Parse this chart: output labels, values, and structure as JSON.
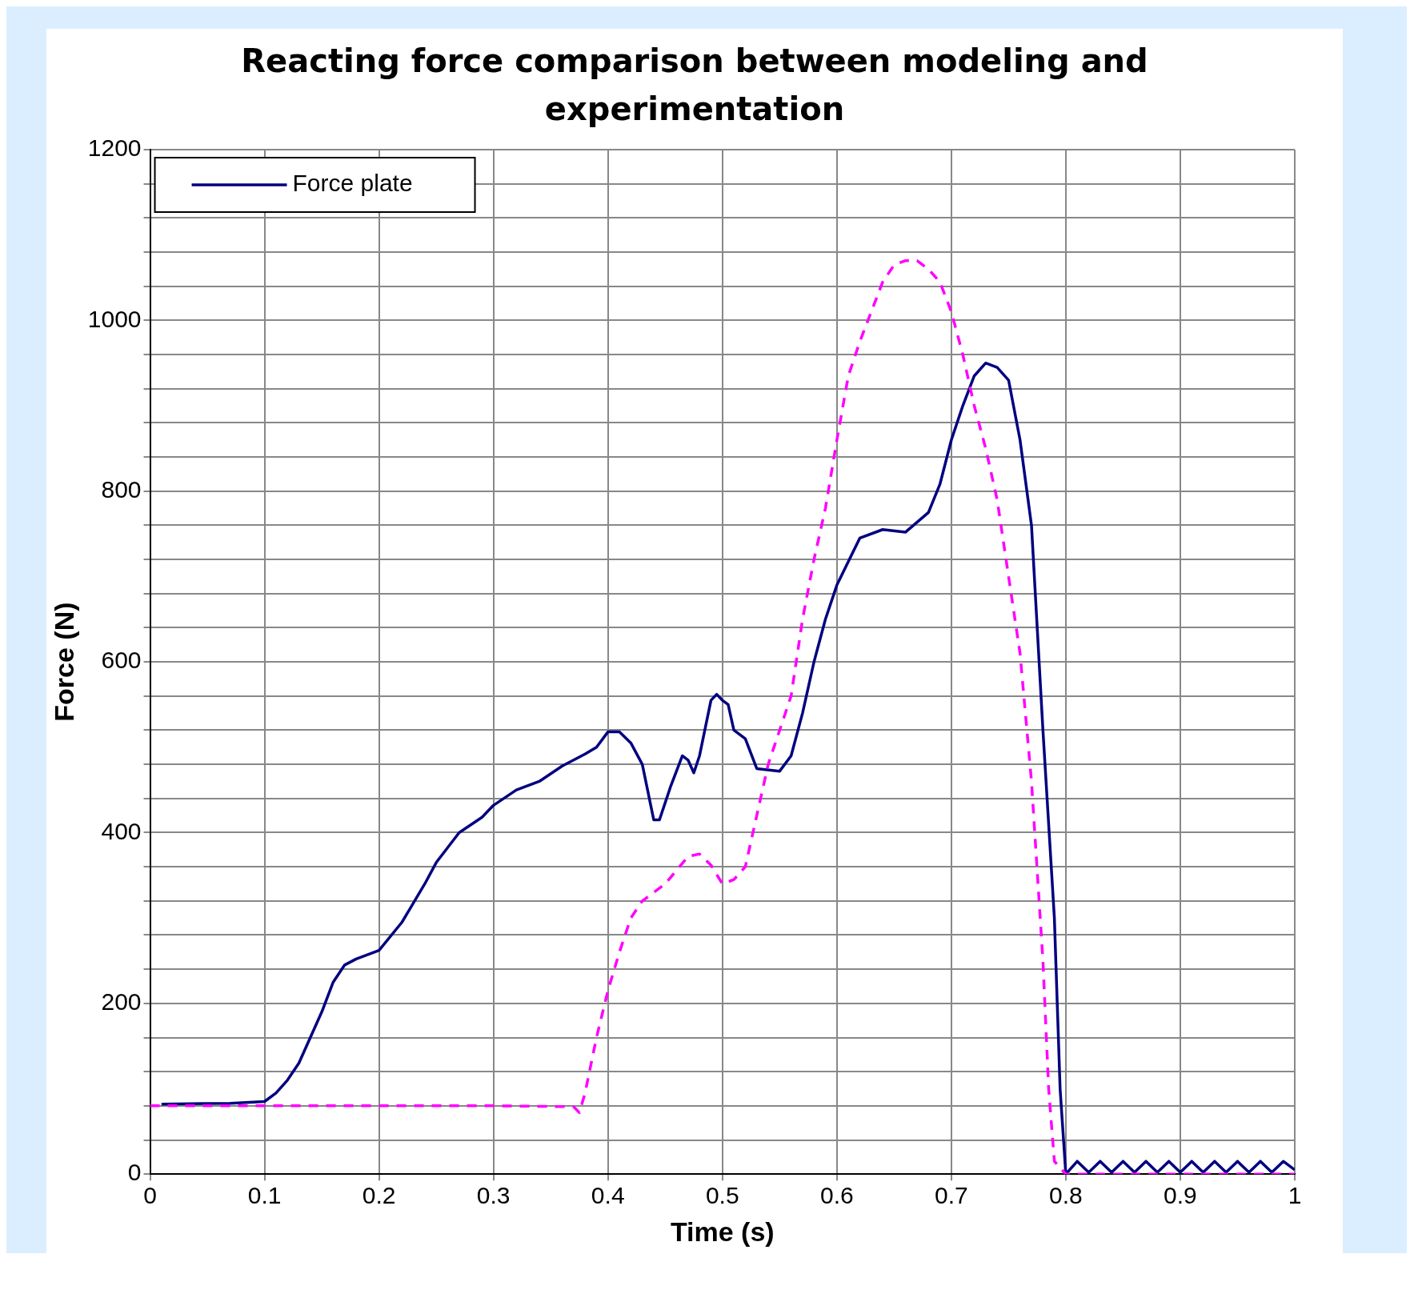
{
  "chart_data": {
    "type": "line",
    "title": "Reacting force comparison between modeling and experimentation",
    "xlabel": "Time (s)",
    "ylabel": "Force (N)",
    "xlim": [
      0,
      1
    ],
    "xticks": [
      0,
      0.1,
      0.2,
      0.3,
      0.4,
      0.5,
      0.6,
      0.7,
      0.8,
      0.9,
      1
    ],
    "ylim": [
      0,
      1200
    ],
    "yticks": [
      0,
      {
        "value": 40,
        "label": null
      },
      {
        "value": 80,
        "label": null
      },
      {
        "value": 120,
        "label": null
      },
      {
        "value": 160,
        "label": null
      },
      200,
      {
        "value": 240,
        "label": null
      },
      {
        "value": 280,
        "label": null
      },
      {
        "value": 320,
        "label": null
      },
      {
        "value": 360,
        "label": null
      },
      400,
      {
        "value": 440,
        "label": null
      },
      {
        "value": 480,
        "label": null
      },
      {
        "value": 520,
        "label": null
      },
      {
        "value": 560,
        "label": null
      },
      600,
      {
        "value": 640,
        "label": null
      },
      {
        "value": 680,
        "label": null
      },
      {
        "value": 720,
        "label": null
      },
      {
        "value": 760,
        "label": null
      },
      800,
      {
        "value": 840,
        "label": null
      },
      {
        "value": 880,
        "label": null
      },
      {
        "value": 920,
        "label": null
      },
      {
        "value": 960,
        "label": null
      },
      1000,
      {
        "value": 1040,
        "label": null
      },
      {
        "value": 1080,
        "label": null
      },
      {
        "value": 1120,
        "label": null
      },
      {
        "value": 1160,
        "label": null
      },
      1200
    ],
    "grid": true,
    "legend": "top left",
    "marker": "none",
    "series": [
      {
        "color": "#ff00ff",
        "line_style": "dashed",
        "x": [
          0,
          0.1,
          0.2,
          0.3,
          0.37,
          0.375,
          0.38,
          0.39,
          0.4,
          0.41,
          0.42,
          0.43,
          0.45,
          0.47,
          0.48,
          0.49,
          0.5,
          0.51,
          0.52,
          0.53,
          0.54,
          0.56,
          0.57,
          0.58,
          0.59,
          0.6,
          0.61,
          0.62,
          0.63,
          0.64,
          0.65,
          0.66,
          0.67,
          0.68,
          0.69,
          0.7,
          0.71,
          0.72,
          0.73,
          0.74,
          0.75,
          0.76,
          0.77,
          0.78,
          0.785,
          0.79,
          0.8,
          1
        ],
        "values": [
          80,
          80,
          80,
          80,
          79,
          72,
          95,
          160,
          215,
          260,
          300,
          320,
          340,
          372,
          375,
          362,
          340,
          345,
          360,
          420,
          480,
          560,
          650,
          720,
          780,
          860,
          935,
          975,
          1010,
          1045,
          1065,
          1070,
          1070,
          1060,
          1045,
          1010,
          960,
          900,
          850,
          790,
          700,
          610,
          460,
          250,
          100,
          15,
          0,
          0
        ]
      },
      {
        "name": "Force plate",
        "color": "#000080",
        "line_style": "solid",
        "x": [
          0.01,
          0.07,
          0.1,
          0.11,
          0.12,
          0.13,
          0.14,
          0.15,
          0.16,
          0.17,
          0.18,
          0.2,
          0.22,
          0.24,
          0.25,
          0.27,
          0.29,
          0.3,
          0.32,
          0.34,
          0.36,
          0.38,
          0.39,
          0.4,
          0.41,
          0.42,
          0.43,
          0.44,
          0.445,
          0.455,
          0.465,
          0.47,
          0.475,
          0.48,
          0.49,
          0.495,
          0.5,
          0.505,
          0.51,
          0.52,
          0.53,
          0.55,
          0.56,
          0.57,
          0.58,
          0.59,
          0.6,
          0.62,
          0.64,
          0.66,
          0.68,
          0.69,
          0.7,
          0.71,
          0.72,
          0.73,
          0.74,
          0.75,
          0.76,
          0.77,
          0.78,
          0.79,
          0.795,
          0.8,
          0.81,
          0.82,
          0.83,
          0.84,
          0.85,
          0.86,
          0.87,
          0.88,
          0.89,
          0.9,
          0.91,
          0.92,
          0.93,
          0.94,
          0.95,
          0.96,
          0.97,
          0.98,
          0.99,
          1
        ],
        "values": [
          82,
          83,
          85,
          95,
          110,
          130,
          160,
          190,
          225,
          245,
          252,
          262,
          295,
          340,
          365,
          400,
          418,
          432,
          450,
          460,
          478,
          492,
          500,
          518,
          518,
          505,
          480,
          415,
          415,
          455,
          490,
          485,
          470,
          490,
          555,
          562,
          555,
          550,
          520,
          510,
          475,
          472,
          490,
          540,
          600,
          650,
          690,
          745,
          755,
          752,
          775,
          808,
          860,
          900,
          935,
          950,
          945,
          930,
          860,
          760,
          520,
          300,
          100,
          0,
          15,
          2,
          15,
          2,
          15,
          2,
          15,
          2,
          15,
          2,
          15,
          2,
          15,
          2,
          15,
          2,
          15,
          2,
          15,
          5
        ]
      }
    ]
  }
}
